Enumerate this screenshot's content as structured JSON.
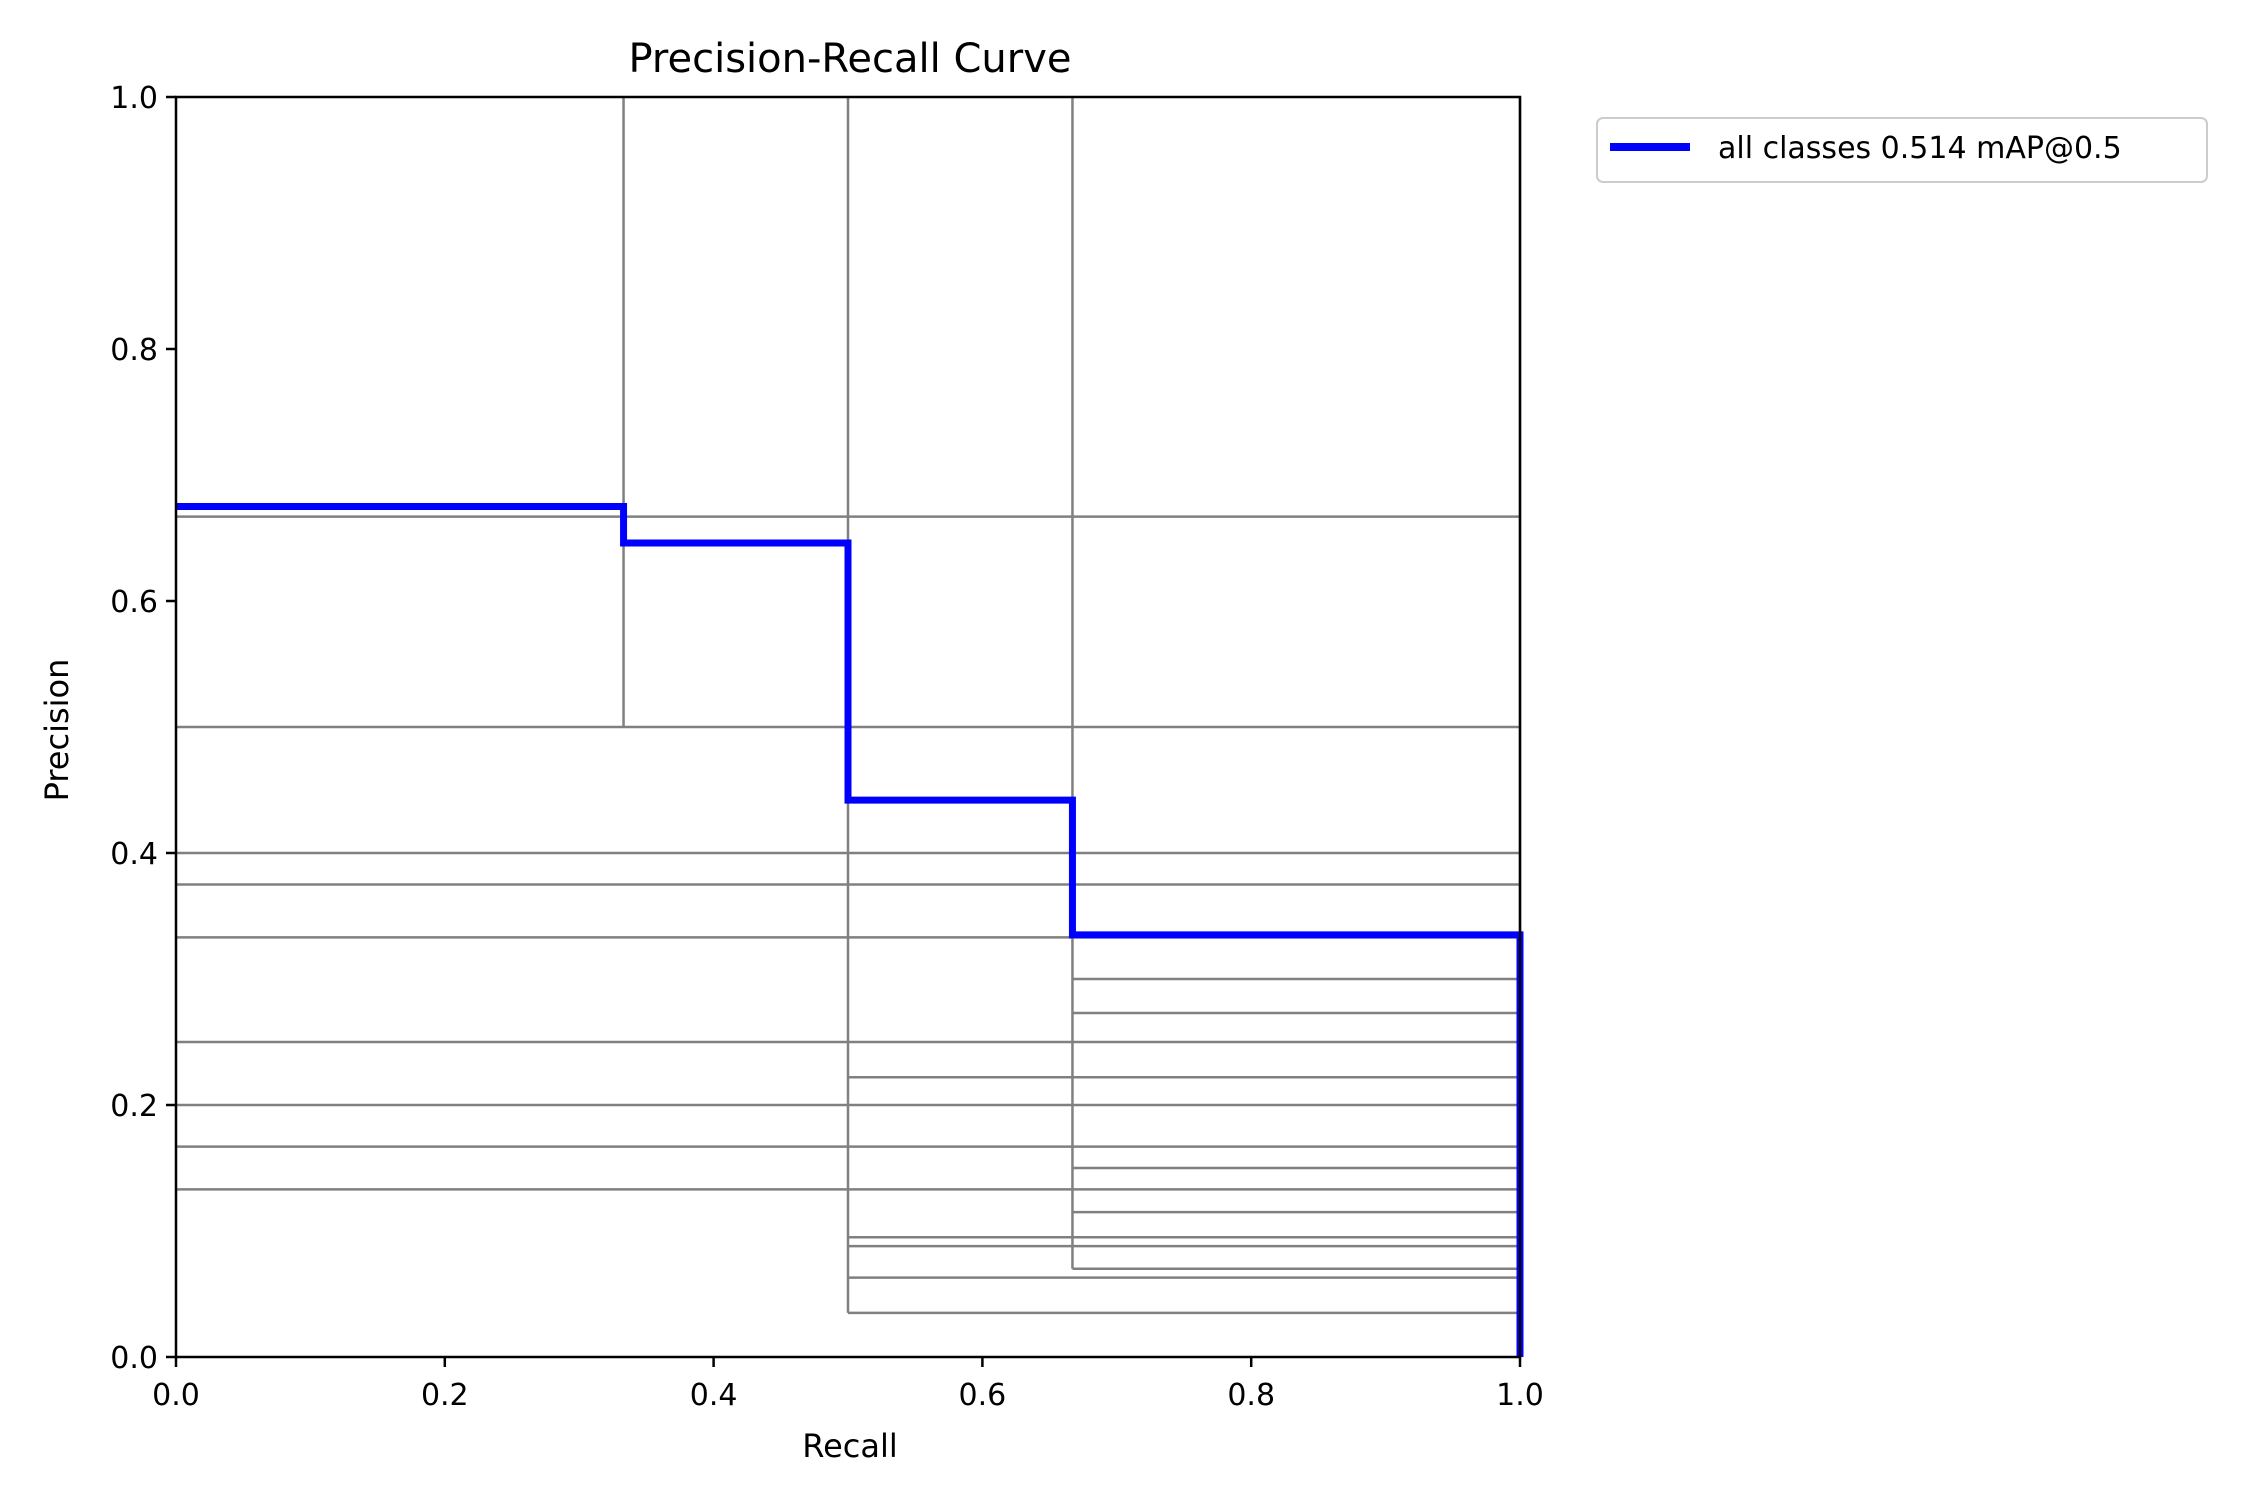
{
  "chart_data": {
    "type": "line",
    "title": "Precision-Recall Curve",
    "xlabel": "Recall",
    "ylabel": "Precision",
    "xlim": [
      0,
      1
    ],
    "ylim": [
      0,
      1
    ],
    "xticks": [
      "0.0",
      "0.2",
      "0.4",
      "0.6",
      "0.8",
      "1.0"
    ],
    "yticks": [
      "0.0",
      "0.2",
      "0.4",
      "0.6",
      "0.8",
      "1.0"
    ],
    "grid": false,
    "legend_position": "outside-upper-right",
    "series": [
      {
        "name": "all classes 0.514 mAP@0.5",
        "color": "#0000ff",
        "style": "step",
        "x": [
          0.0,
          0.333,
          0.333,
          0.5,
          0.5,
          0.667,
          0.667,
          1.0,
          1.0
        ],
        "y": [
          0.675,
          0.675,
          0.646,
          0.646,
          0.442,
          0.442,
          0.335,
          0.335,
          0.0
        ]
      }
    ],
    "per_class_color": "#808080",
    "per_class_vertical_lines": [
      {
        "x": 0.333,
        "y_from": 0.5,
        "y_to": 1.0
      },
      {
        "x": 0.5,
        "y_from": 0.035,
        "y_to": 1.0
      },
      {
        "x": 0.667,
        "y_from": 0.07,
        "y_to": 1.0
      },
      {
        "x": 1.0,
        "y_from": 0.0,
        "y_to": 1.0
      }
    ],
    "per_class_horizontal_lines": [
      {
        "y": 0.667,
        "x_from": 0.0,
        "x_to": 1.0
      },
      {
        "y": 0.5,
        "x_from": 0.0,
        "x_to": 1.0
      },
      {
        "y": 0.4,
        "x_from": 0.0,
        "x_to": 1.0
      },
      {
        "y": 0.375,
        "x_from": 0.0,
        "x_to": 1.0
      },
      {
        "y": 0.333,
        "x_from": 0.0,
        "x_to": 1.0
      },
      {
        "y": 0.3,
        "x_from": 0.667,
        "x_to": 1.0
      },
      {
        "y": 0.273,
        "x_from": 0.667,
        "x_to": 1.0
      },
      {
        "y": 0.25,
        "x_from": 0.0,
        "x_to": 1.0
      },
      {
        "y": 0.222,
        "x_from": 0.5,
        "x_to": 1.0
      },
      {
        "y": 0.2,
        "x_from": 0.0,
        "x_to": 1.0
      },
      {
        "y": 0.167,
        "x_from": 0.0,
        "x_to": 1.0
      },
      {
        "y": 0.15,
        "x_from": 0.667,
        "x_to": 1.0
      },
      {
        "y": 0.133,
        "x_from": 0.0,
        "x_to": 1.0
      },
      {
        "y": 0.115,
        "x_from": 0.667,
        "x_to": 1.0
      },
      {
        "y": 0.095,
        "x_from": 0.5,
        "x_to": 1.0
      },
      {
        "y": 0.088,
        "x_from": 0.5,
        "x_to": 1.0
      },
      {
        "y": 0.07,
        "x_from": 0.667,
        "x_to": 1.0
      },
      {
        "y": 0.063,
        "x_from": 0.5,
        "x_to": 1.0
      },
      {
        "y": 0.035,
        "x_from": 0.5,
        "x_to": 1.0
      }
    ]
  }
}
